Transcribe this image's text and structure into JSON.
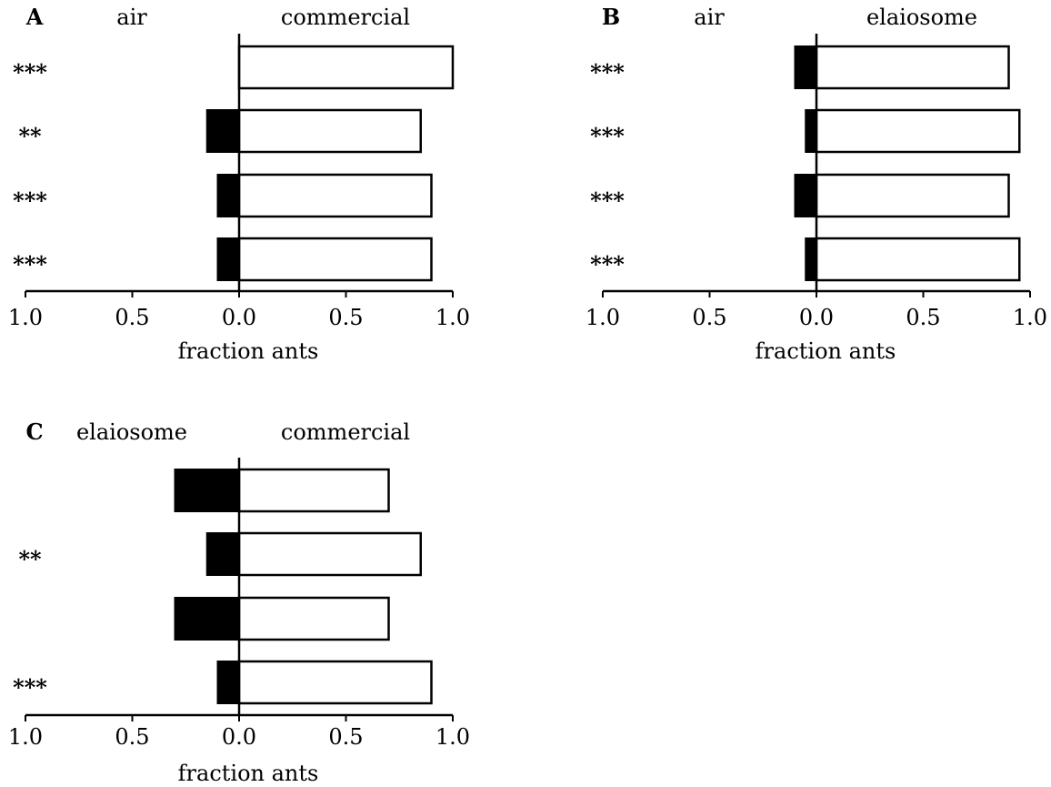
{
  "chart_data": [
    {
      "type": "bar",
      "orientation": "horizontal-diverging",
      "panel": "A",
      "left_label": "air",
      "right_label": "commercial",
      "xlabel": "fraction ants",
      "xticks": [
        "1.0",
        "0.5",
        "0.0",
        "0.5",
        "1.0"
      ],
      "xlim": [
        -1.0,
        1.0
      ],
      "rows": [
        {
          "left": 0.0,
          "right": 1.0,
          "significance": "***"
        },
        {
          "left": 0.15,
          "right": 0.85,
          "significance": "**"
        },
        {
          "left": 0.1,
          "right": 0.9,
          "significance": "***"
        },
        {
          "left": 0.1,
          "right": 0.9,
          "significance": "***"
        }
      ],
      "colors": {
        "left": "#000000",
        "right": "#ffffff"
      }
    },
    {
      "type": "bar",
      "orientation": "horizontal-diverging",
      "panel": "B",
      "left_label": "air",
      "right_label": "elaiosome",
      "xlabel": "fraction ants",
      "xticks": [
        "1.0",
        "0.5",
        "0.0",
        "0.5",
        "1.0"
      ],
      "xlim": [
        -1.0,
        1.0
      ],
      "rows": [
        {
          "left": 0.1,
          "right": 0.9,
          "significance": "***"
        },
        {
          "left": 0.05,
          "right": 0.95,
          "significance": "***"
        },
        {
          "left": 0.1,
          "right": 0.9,
          "significance": "***"
        },
        {
          "left": 0.05,
          "right": 0.95,
          "significance": "***"
        }
      ],
      "colors": {
        "left": "#000000",
        "right": "#ffffff"
      }
    },
    {
      "type": "bar",
      "orientation": "horizontal-diverging",
      "panel": "C",
      "left_label": "elaiosome",
      "right_label": "commercial",
      "xlabel": "fraction ants",
      "xticks": [
        "1.0",
        "0.5",
        "0.0",
        "0.5",
        "1.0"
      ],
      "xlim": [
        -1.0,
        1.0
      ],
      "rows": [
        {
          "left": 0.3,
          "right": 0.7,
          "significance": ""
        },
        {
          "left": 0.15,
          "right": 0.85,
          "significance": "**"
        },
        {
          "left": 0.3,
          "right": 0.7,
          "significance": ""
        },
        {
          "left": 0.1,
          "right": 0.9,
          "significance": "***"
        }
      ],
      "colors": {
        "left": "#000000",
        "right": "#ffffff"
      }
    }
  ]
}
